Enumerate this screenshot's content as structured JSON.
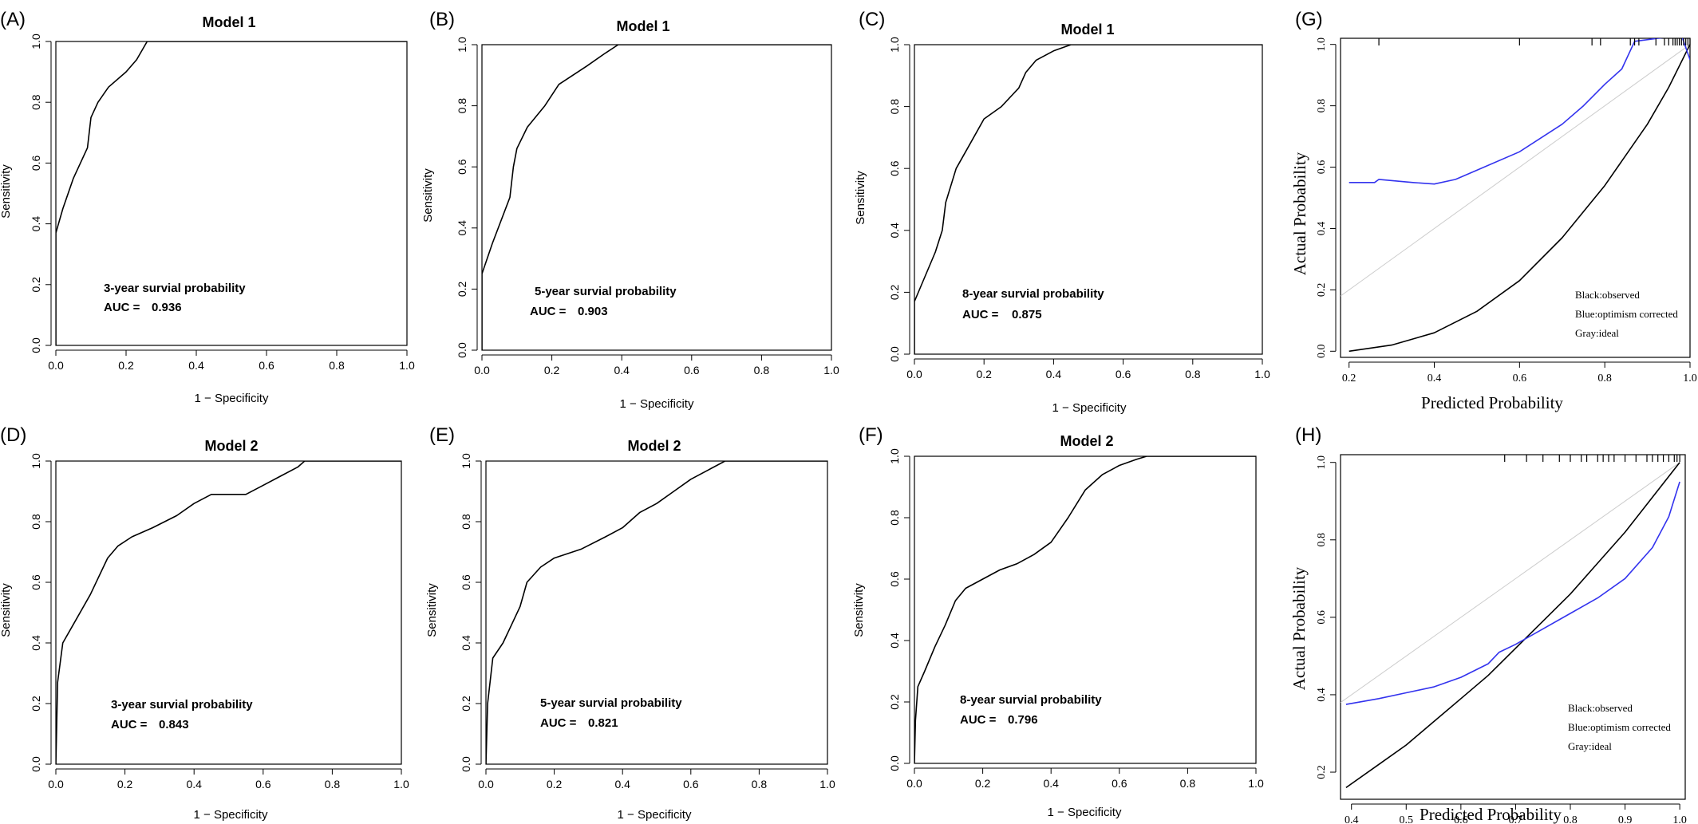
{
  "panels": [
    {
      "label": "(A)",
      "title": "Model 1",
      "kind": "roc",
      "xlabel": "1 − Specificity",
      "ylabel": "Sensitivity",
      "annotation": "3-year survial probability",
      "auc_label": "AUC =",
      "auc_value": "0.936"
    },
    {
      "label": "(B)",
      "title": "Model 1",
      "kind": "roc",
      "xlabel": "1 − Specificity",
      "ylabel": "Sensitivity",
      "annotation": "5-year survial probability",
      "auc_label": "AUC =",
      "auc_value": "0.903"
    },
    {
      "label": "(C)",
      "title": "Model 1",
      "kind": "roc",
      "xlabel": "1 − Specificity",
      "ylabel": "Sensitivity",
      "annotation": "8-year survial probability",
      "auc_label": "AUC =",
      "auc_value": "0.875"
    },
    {
      "label": "(G)",
      "title": "",
      "kind": "calibration",
      "xlabel": "Predicted Probability",
      "ylabel": "Actual Probability",
      "legend": [
        "Black:observed",
        "Blue:optimism corrected",
        "Gray:ideal"
      ]
    },
    {
      "label": "(D)",
      "title": "Model 2",
      "kind": "roc",
      "xlabel": "1 − Specificity",
      "ylabel": "Sensitivity",
      "annotation": "3-year survial probability",
      "auc_label": "AUC =",
      "auc_value": "0.843"
    },
    {
      "label": "(E)",
      "title": "Model 2",
      "kind": "roc",
      "xlabel": "1 − Specificity",
      "ylabel": "Sensitivity",
      "annotation": "5-year survial probability",
      "auc_label": "AUC =",
      "auc_value": "0.821"
    },
    {
      "label": "(F)",
      "title": "Model 2",
      "kind": "roc",
      "xlabel": "1 − Specificity",
      "ylabel": "Sensitivity",
      "annotation": "8-year survial probability",
      "auc_label": "AUC =",
      "auc_value": "0.796"
    },
    {
      "label": "(H)",
      "title": "",
      "kind": "calibration",
      "xlabel": "Predicted Probability",
      "ylabel": "Actual Probability",
      "legend": [
        "Black:observed",
        "Blue:optimism corrected",
        "Gray:ideal"
      ]
    }
  ],
  "chart_data": [
    {
      "panel": "(A)",
      "type": "line",
      "title": "Model 1",
      "xlabel": "1 − Specificity",
      "ylabel": "Sensitivity",
      "xlim": [
        0,
        1
      ],
      "ylim": [
        0,
        1
      ],
      "xticks": [
        "0.0",
        "0.2",
        "0.4",
        "0.6",
        "0.8",
        "1.0"
      ],
      "yticks": [
        "0.0",
        "0.2",
        "0.4",
        "0.6",
        "0.8",
        "1.0"
      ],
      "series": [
        {
          "x": [
            0,
            0,
            0.02,
            0.05,
            0.09,
            0.1,
            0.12,
            0.15,
            0.2,
            0.23,
            0.25,
            0.26,
            1.0
          ],
          "y": [
            0,
            0.37,
            0.45,
            0.55,
            0.65,
            0.75,
            0.8,
            0.85,
            0.9,
            0.94,
            0.98,
            1.0,
            1.0
          ]
        }
      ],
      "annotations": [
        "3-year survial probability",
        "AUC = 0.936"
      ],
      "line_color": "#000000"
    },
    {
      "panel": "(B)",
      "type": "line",
      "title": "Model 1",
      "xlabel": "1 − Specificity",
      "ylabel": "Sensitivity",
      "xlim": [
        0,
        1
      ],
      "ylim": [
        0,
        1
      ],
      "xticks": [
        "0.0",
        "0.2",
        "0.4",
        "0.6",
        "0.8",
        "1.0"
      ],
      "yticks": [
        "0.0",
        "0.2",
        "0.4",
        "0.6",
        "0.8",
        "1.0"
      ],
      "series": [
        {
          "x": [
            0,
            0,
            0.03,
            0.08,
            0.09,
            0.1,
            0.13,
            0.18,
            0.22,
            0.26,
            0.3,
            0.35,
            0.39,
            1.0
          ],
          "y": [
            0,
            0.25,
            0.35,
            0.5,
            0.6,
            0.66,
            0.73,
            0.8,
            0.87,
            0.9,
            0.93,
            0.97,
            1.0,
            1.0
          ]
        }
      ],
      "annotations": [
        "5-year survial probability",
        "AUC = 0.903"
      ],
      "line_color": "#000000"
    },
    {
      "panel": "(C)",
      "type": "line",
      "title": "Model 1",
      "xlabel": "1 − Specificity",
      "ylabel": "Sensitivity",
      "xlim": [
        0,
        1
      ],
      "ylim": [
        0,
        1
      ],
      "xticks": [
        "0.0",
        "0.2",
        "0.4",
        "0.6",
        "0.8",
        "1.0"
      ],
      "yticks": [
        "0.0",
        "0.2",
        "0.4",
        "0.6",
        "0.8",
        "1.0"
      ],
      "series": [
        {
          "x": [
            0,
            0,
            0.03,
            0.06,
            0.08,
            0.09,
            0.12,
            0.16,
            0.2,
            0.25,
            0.3,
            0.32,
            0.35,
            0.4,
            0.45,
            1.0
          ],
          "y": [
            0,
            0.17,
            0.25,
            0.33,
            0.4,
            0.49,
            0.6,
            0.68,
            0.76,
            0.8,
            0.86,
            0.91,
            0.95,
            0.98,
            1.0,
            1.0
          ]
        }
      ],
      "annotations": [
        "8-year survial probability",
        "AUC = 0.875"
      ],
      "line_color": "#000000"
    },
    {
      "panel": "(G)",
      "type": "line",
      "xlabel": "Predicted Probability",
      "ylabel": "Actual Probability",
      "xlim": [
        0.18,
        1.0
      ],
      "ylim": [
        -0.02,
        1.02
      ],
      "xticks": [
        "0.2",
        "0.4",
        "0.6",
        "0.8",
        "1.0"
      ],
      "yticks": [
        "0.0",
        "0.2",
        "0.4",
        "0.6",
        "0.8",
        "1.0"
      ],
      "series": [
        {
          "name": "observed",
          "color": "#000000",
          "x": [
            0.2,
            0.3,
            0.4,
            0.5,
            0.6,
            0.7,
            0.8,
            0.9,
            0.95,
            1.0
          ],
          "y": [
            0.0,
            0.02,
            0.06,
            0.13,
            0.23,
            0.37,
            0.54,
            0.74,
            0.86,
            1.0
          ]
        },
        {
          "name": "optimism corrected",
          "color": "#3333ee",
          "x": [
            0.2,
            0.26,
            0.27,
            0.35,
            0.4,
            0.45,
            0.5,
            0.6,
            0.7,
            0.75,
            0.8,
            0.84,
            0.87,
            0.98,
            1.0
          ],
          "y": [
            0.55,
            0.55,
            0.56,
            0.55,
            0.545,
            0.56,
            0.59,
            0.65,
            0.74,
            0.8,
            0.87,
            0.92,
            1.01,
            1.03,
            0.95
          ]
        },
        {
          "name": "ideal",
          "color": "#cccccc",
          "x": [
            0.18,
            1.0
          ],
          "y": [
            0.18,
            1.0
          ]
        }
      ],
      "rug_x": [
        0.27,
        0.6,
        0.77,
        0.79,
        0.86,
        0.87,
        0.88,
        0.92,
        0.94,
        0.95,
        0.96,
        0.965,
        0.97,
        0.975,
        0.98,
        0.985,
        0.99,
        0.995,
        1.0
      ],
      "legend": [
        "Black:observed",
        "Blue:optimism corrected",
        "Gray:ideal"
      ]
    },
    {
      "panel": "(D)",
      "type": "line",
      "title": "Model 2",
      "xlabel": "1 − Specificity",
      "ylabel": "Sensitivity",
      "xlim": [
        0,
        1
      ],
      "ylim": [
        0,
        1
      ],
      "xticks": [
        "0.0",
        "0.2",
        "0.4",
        "0.6",
        "0.8",
        "1.0"
      ],
      "yticks": [
        "0.0",
        "0.2",
        "0.4",
        "0.6",
        "0.8",
        "1.0"
      ],
      "series": [
        {
          "x": [
            0,
            0.005,
            0.02,
            0.05,
            0.1,
            0.15,
            0.18,
            0.22,
            0.28,
            0.35,
            0.4,
            0.45,
            0.55,
            0.6,
            0.65,
            0.7,
            0.72,
            1.0
          ],
          "y": [
            0,
            0.27,
            0.4,
            0.46,
            0.56,
            0.68,
            0.72,
            0.75,
            0.78,
            0.82,
            0.86,
            0.89,
            0.89,
            0.92,
            0.95,
            0.98,
            1.0,
            1.0
          ]
        }
      ],
      "annotations": [
        "3-year survial probability",
        "AUC = 0.843"
      ],
      "line_color": "#000000"
    },
    {
      "panel": "(E)",
      "type": "line",
      "title": "Model 2",
      "xlabel": "1 − Specificity",
      "ylabel": "Sensitivity",
      "xlim": [
        0,
        1
      ],
      "ylim": [
        0,
        1
      ],
      "xticks": [
        "0.0",
        "0.2",
        "0.4",
        "0.6",
        "0.8",
        "1.0"
      ],
      "yticks": [
        "0.0",
        "0.2",
        "0.4",
        "0.6",
        "0.8",
        "1.0"
      ],
      "series": [
        {
          "x": [
            0,
            0.005,
            0.02,
            0.05,
            0.1,
            0.12,
            0.16,
            0.2,
            0.28,
            0.35,
            0.4,
            0.45,
            0.5,
            0.55,
            0.6,
            0.65,
            0.7,
            1.0
          ],
          "y": [
            0,
            0.2,
            0.35,
            0.4,
            0.52,
            0.6,
            0.65,
            0.68,
            0.71,
            0.75,
            0.78,
            0.83,
            0.86,
            0.9,
            0.94,
            0.97,
            1.0,
            1.0
          ]
        }
      ],
      "annotations": [
        "5-year survial probability",
        "AUC = 0.821"
      ],
      "line_color": "#000000"
    },
    {
      "panel": "(F)",
      "type": "line",
      "title": "Model 2",
      "xlabel": "1 − Specificity",
      "ylabel": "Sensitivity",
      "xlim": [
        0,
        1
      ],
      "ylim": [
        0,
        1
      ],
      "xticks": [
        "0.0",
        "0.2",
        "0.4",
        "0.6",
        "0.8",
        "1.0"
      ],
      "yticks": [
        "0.0",
        "0.2",
        "0.4",
        "0.6",
        "0.8",
        "1.0"
      ],
      "series": [
        {
          "x": [
            0,
            0.003,
            0.01,
            0.03,
            0.06,
            0.09,
            0.12,
            0.15,
            0.2,
            0.25,
            0.3,
            0.35,
            0.4,
            0.45,
            0.5,
            0.55,
            0.6,
            0.65,
            0.68,
            1.0
          ],
          "y": [
            0,
            0.14,
            0.25,
            0.3,
            0.38,
            0.45,
            0.53,
            0.57,
            0.6,
            0.63,
            0.65,
            0.68,
            0.72,
            0.8,
            0.89,
            0.94,
            0.97,
            0.99,
            1.0,
            1.0
          ]
        }
      ],
      "annotations": [
        "8-year survial probability",
        "AUC = 0.796"
      ],
      "line_color": "#000000"
    },
    {
      "panel": "(H)",
      "type": "line",
      "xlabel": "Predicted Probability",
      "ylabel": "Actual Probability",
      "xlim": [
        0.38,
        1.01
      ],
      "ylim": [
        0.13,
        1.02
      ],
      "xticks": [
        "0.4",
        "0.5",
        "0.6",
        "0.7",
        "0.8",
        "0.9",
        "1.0"
      ],
      "yticks": [
        "0.2",
        "0.4",
        "0.6",
        "0.8",
        "1.0"
      ],
      "series": [
        {
          "name": "observed",
          "color": "#000000",
          "x": [
            0.39,
            0.45,
            0.5,
            0.55,
            0.6,
            0.65,
            0.7,
            0.75,
            0.8,
            0.85,
            0.9,
            0.95,
            1.0
          ],
          "y": [
            0.16,
            0.22,
            0.27,
            0.33,
            0.39,
            0.45,
            0.52,
            0.59,
            0.66,
            0.74,
            0.82,
            0.91,
            1.0
          ]
        },
        {
          "name": "optimism corrected",
          "color": "#3333ee",
          "x": [
            0.39,
            0.45,
            0.5,
            0.55,
            0.6,
            0.65,
            0.67,
            0.7,
            0.75,
            0.8,
            0.85,
            0.9,
            0.95,
            0.98,
            1.0
          ],
          "y": [
            0.375,
            0.39,
            0.405,
            0.42,
            0.445,
            0.48,
            0.51,
            0.53,
            0.57,
            0.61,
            0.65,
            0.7,
            0.78,
            0.86,
            0.95
          ]
        },
        {
          "name": "ideal",
          "color": "#cccccc",
          "x": [
            0.38,
            1.0
          ],
          "y": [
            0.38,
            1.0
          ]
        }
      ],
      "rug_x": [
        0.68,
        0.72,
        0.75,
        0.78,
        0.8,
        0.82,
        0.83,
        0.85,
        0.86,
        0.87,
        0.88,
        0.9,
        0.92,
        0.94,
        0.95,
        0.96,
        0.97,
        0.98,
        0.99,
        0.995,
        1.0
      ],
      "legend": [
        "Black:observed",
        "Blue:optimism corrected",
        "Gray:ideal"
      ]
    }
  ]
}
